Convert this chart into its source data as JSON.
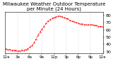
{
  "title": "Milwaukee Weather Outdoor Temperature\nper Minute (24 Hours)",
  "title_fontsize": 5,
  "line_color": "red",
  "background_color": "white",
  "grid_color": "#aaaaaa",
  "x_values": [
    0,
    30,
    60,
    90,
    120,
    150,
    180,
    210,
    240,
    270,
    300,
    330,
    360,
    390,
    420,
    450,
    480,
    510,
    540,
    570,
    600,
    630,
    660,
    690,
    720,
    750,
    780,
    810,
    840,
    870,
    900,
    930,
    960,
    990,
    1020,
    1050,
    1080,
    1110,
    1140,
    1170,
    1200,
    1230,
    1260,
    1290,
    1320,
    1350,
    1380,
    1410,
    1440
  ],
  "y_values": [
    34,
    33,
    33,
    32,
    32,
    32,
    31,
    31,
    32,
    32,
    33,
    34,
    36,
    38,
    42,
    47,
    53,
    57,
    61,
    65,
    69,
    72,
    74,
    76,
    77,
    78,
    79,
    79,
    78,
    77,
    76,
    75,
    73,
    72,
    71,
    70,
    69,
    68,
    68,
    67,
    67,
    67,
    67,
    67,
    66,
    66,
    65,
    65,
    65
  ],
  "ylim": [
    28,
    85
  ],
  "yticks": [
    30,
    40,
    50,
    60,
    70,
    80
  ],
  "ytick_labels": [
    "30",
    "40",
    "50",
    "60",
    "70",
    "80"
  ],
  "xtick_positions": [
    0,
    180,
    360,
    540,
    720,
    900,
    1080,
    1260,
    1440
  ],
  "xtick_labels": [
    "12a",
    "3a",
    "6a",
    "9a",
    "12p",
    "3p",
    "6p",
    "9p",
    "12a"
  ],
  "ylabel_fontsize": 4.5,
  "xlabel_fontsize": 4.0
}
